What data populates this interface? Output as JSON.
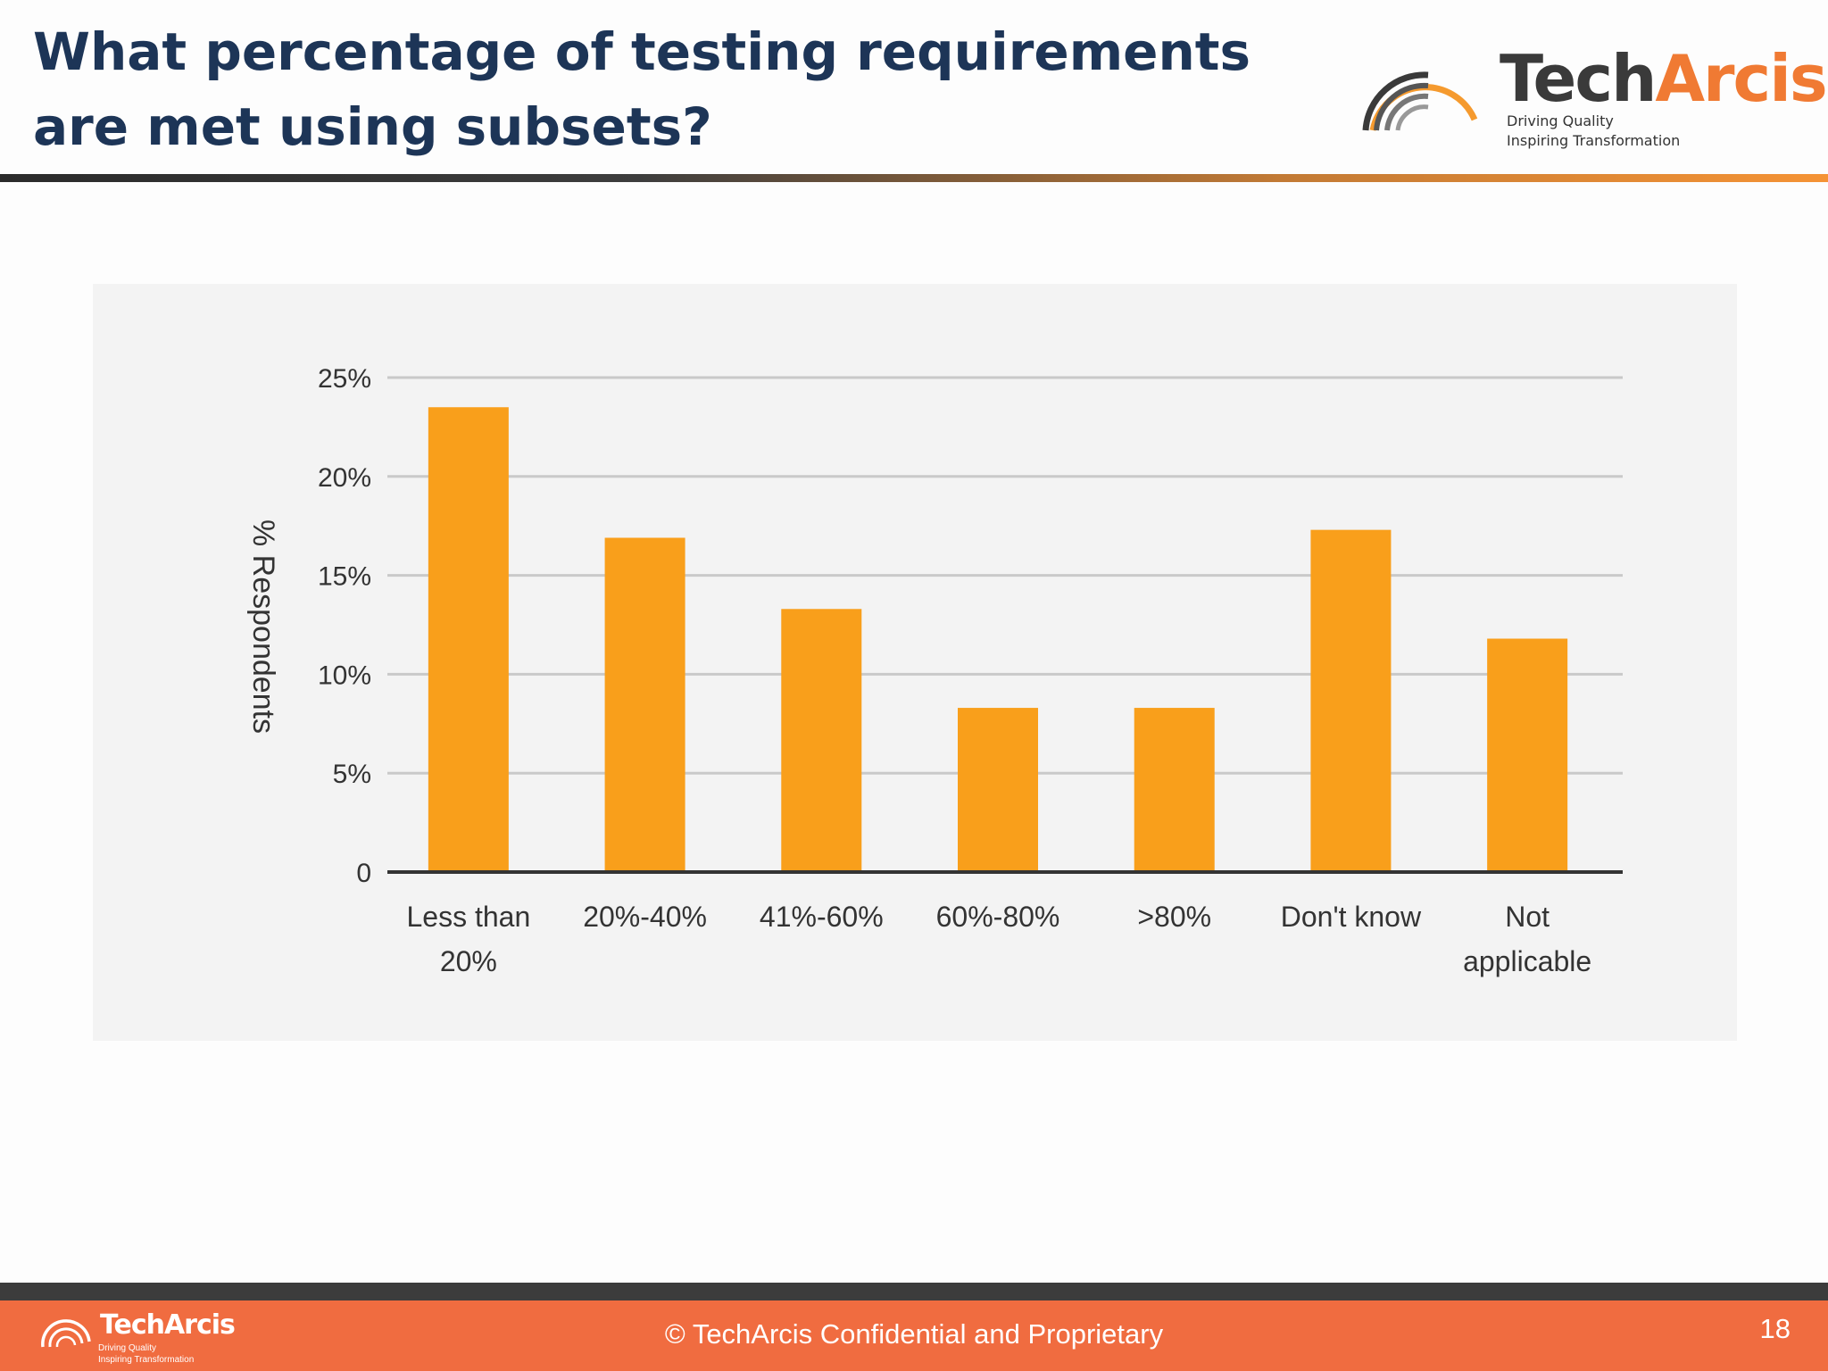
{
  "slide": {
    "title": "What percentage of testing requirements are met using subsets?",
    "logo": {
      "word_part1": "Tech",
      "word_part2": "Arcis",
      "tagline_1": "Driving Quality",
      "tagline_2": "Inspiring Transformation"
    },
    "footer": {
      "copyright": "© TechArcis Confidential and Proprietary",
      "page_number": "18"
    }
  },
  "colors": {
    "title": "#1d3557",
    "bar": "#f99f1b",
    "footer": "#f06c40",
    "accent": "#f07a33"
  },
  "chart_data": {
    "type": "bar",
    "categories": [
      "Less than 20%",
      "20%-40%",
      "41%-60%",
      "60%-80%",
      ">80%",
      "Don't know",
      "Not applicable"
    ],
    "category_lines": [
      [
        "Less than",
        "20%"
      ],
      [
        "20%-40%"
      ],
      [
        "41%-60%"
      ],
      [
        "60%-80%"
      ],
      [
        ">80%"
      ],
      [
        "Don't know"
      ],
      [
        "Not",
        "applicable"
      ]
    ],
    "values": [
      23.5,
      16.9,
      13.3,
      8.3,
      8.3,
      17.3,
      11.8
    ],
    "ylabel": "% Respondents",
    "ylim": [
      0,
      25
    ],
    "yticks": [
      0,
      5,
      10,
      15,
      20,
      25
    ],
    "ytick_labels": [
      "0",
      "5%",
      "10%",
      "15%",
      "20%",
      "25%"
    ],
    "grid": true,
    "legend": false
  }
}
